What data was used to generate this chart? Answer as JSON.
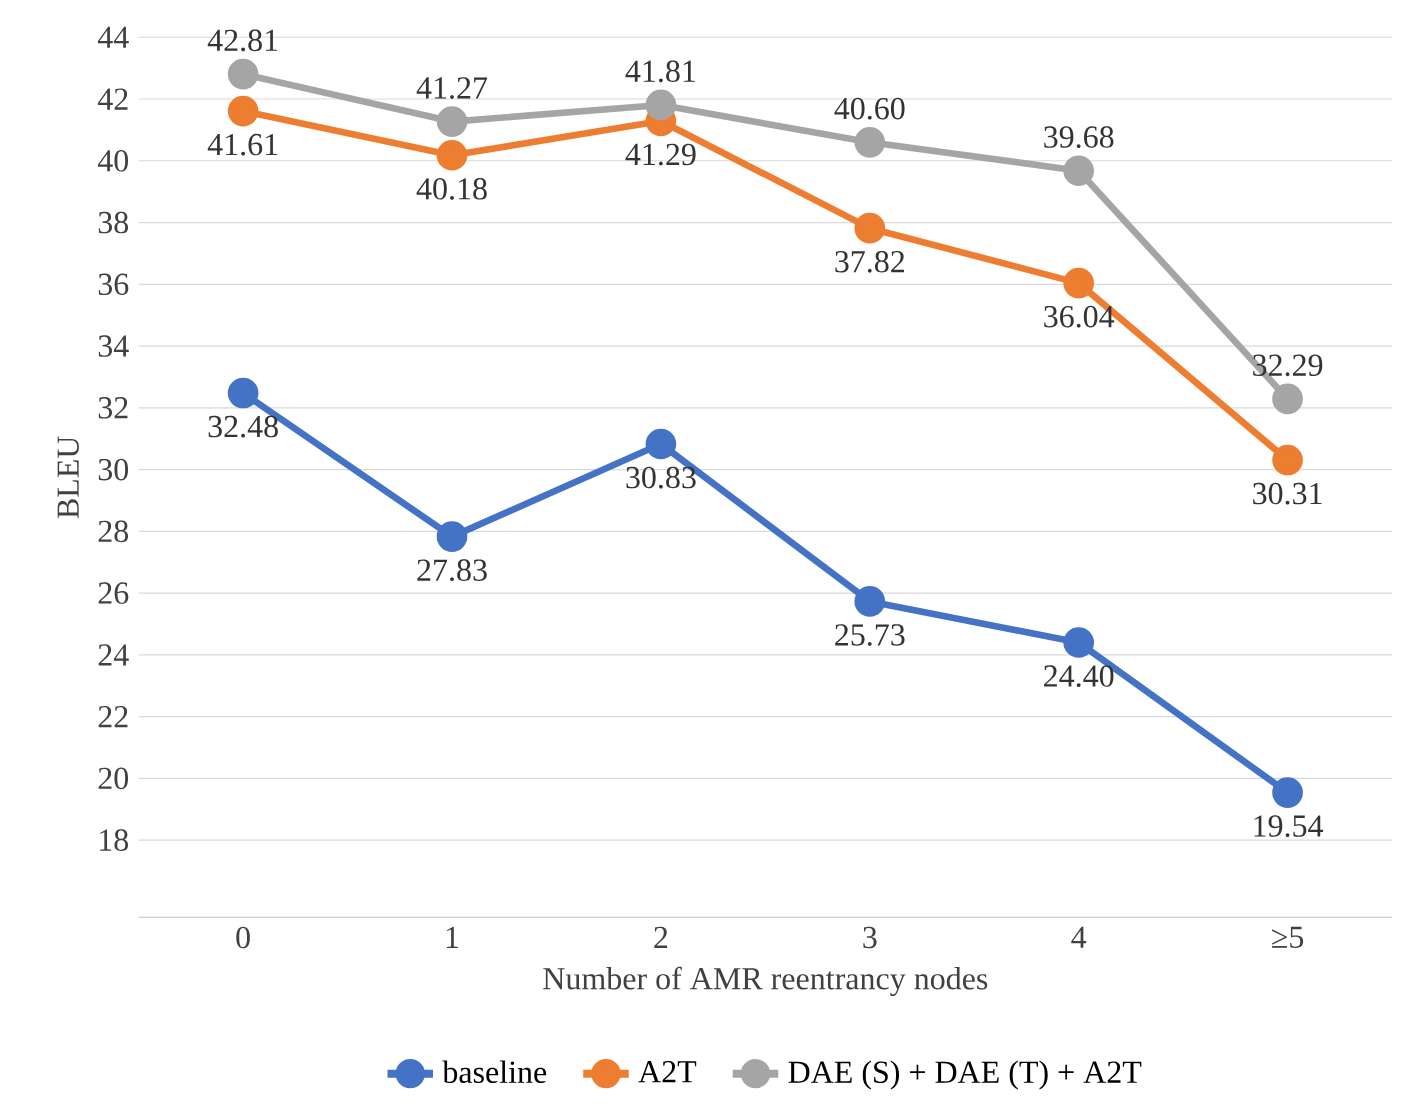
{
  "chart_data": {
    "type": "line",
    "xlabel": "Number of AMR reentrancy nodes",
    "ylabel": "BLEU",
    "categories": [
      "0",
      "1",
      "2",
      "3",
      "4",
      "≥5"
    ],
    "series": [
      {
        "name": "baseline",
        "color": "#4472c4",
        "values": [
          32.48,
          27.83,
          30.83,
          25.73,
          24.4,
          19.54
        ],
        "value_labels": [
          "32.48",
          "27.83",
          "30.83",
          "25.73",
          "24.40",
          "19.54"
        ]
      },
      {
        "name": "A2T",
        "color": "#ed7d31",
        "values": [
          41.61,
          40.18,
          41.29,
          37.82,
          36.04,
          30.31
        ],
        "value_labels": [
          "41.61",
          "40.18",
          "41.29",
          "37.82",
          "36.04",
          "30.31"
        ]
      },
      {
        "name": "DAE (S) + DAE (T) + A2T",
        "color": "#a5a5a5",
        "values": [
          42.81,
          41.27,
          41.81,
          40.6,
          39.68,
          32.29
        ],
        "value_labels": [
          "42.81",
          "41.27",
          "41.81",
          "40.60",
          "39.68",
          "32.29"
        ]
      }
    ],
    "ylim": [
      15.5,
      44
    ],
    "yticks": [
      18,
      20,
      22,
      24,
      26,
      28,
      30,
      32,
      34,
      36,
      38,
      40,
      42,
      44
    ],
    "grid": "y",
    "legend": "bottom",
    "marker": "circle",
    "line_style": "solid"
  }
}
